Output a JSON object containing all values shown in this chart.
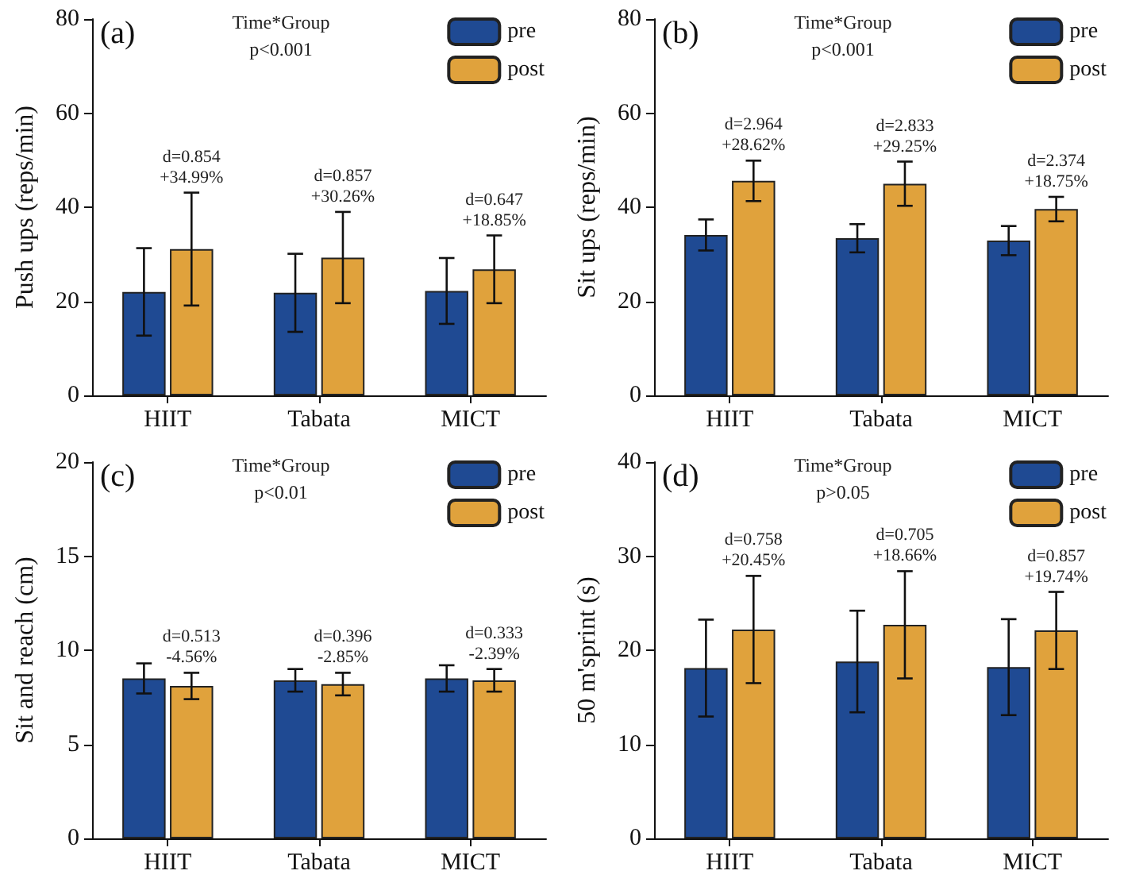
{
  "chart_data": [
    {
      "type": "bar",
      "title": "(a)",
      "ylabel": "Push ups (reps/min)",
      "categories": [
        "HIIT",
        "Tabata",
        "MICT"
      ],
      "ylim": [
        0,
        80
      ],
      "yticks": [
        0,
        20,
        40,
        60,
        80
      ],
      "legend": "top right",
      "annotations": [
        "Time*Group",
        "p<0.001",
        "d=0.854\n+34.99%",
        "d=0.857\n+30.26%",
        "d=0.647\n+18.85%"
      ],
      "series": [
        {
          "name": "pre",
          "color": "#1f4a93",
          "values": [
            22,
            21.8,
            22.2
          ],
          "errors": [
            9.3,
            8.3,
            7
          ]
        },
        {
          "name": "post",
          "color": "#e0a23c",
          "values": [
            31.1,
            29.3,
            26.8
          ],
          "errors": [
            12,
            9.7,
            7.2
          ]
        }
      ]
    },
    {
      "type": "bar",
      "title": "(b)",
      "ylabel": "Sit ups (reps/min)",
      "categories": [
        "HIIT",
        "Tabata",
        "MICT"
      ],
      "ylim": [
        0,
        80
      ],
      "yticks": [
        0,
        20,
        40,
        60,
        80
      ],
      "legend": "top right",
      "annotations": [
        "Time*Group",
        "p<0.001",
        "d=2.964\n+28.62%",
        "d=2.833\n+29.25%",
        "d=2.374\n+18.75%"
      ],
      "series": [
        {
          "name": "pre",
          "color": "#1f4a93",
          "values": [
            34.1,
            33.4,
            32.9
          ],
          "errors": [
            3.3,
            3,
            3.1
          ]
        },
        {
          "name": "post",
          "color": "#e0a23c",
          "values": [
            45.6,
            45,
            39.6
          ],
          "errors": [
            4.3,
            4.7,
            2.6
          ]
        }
      ]
    },
    {
      "type": "bar",
      "title": "(c)",
      "ylabel": "Sit and reach (cm)",
      "categories": [
        "HIIT",
        "Tabata",
        "MICT"
      ],
      "ylim": [
        0,
        20
      ],
      "yticks": [
        0,
        5,
        10,
        15,
        20
      ],
      "legend": "top right",
      "annotations": [
        "Time*Group",
        "p<0.01",
        "d=0.513\n-4.56%",
        "d=0.396\n-2.85%",
        "d=0.333\n-2.39%"
      ],
      "series": [
        {
          "name": "pre",
          "color": "#1f4a93",
          "values": [
            8.5,
            8.4,
            8.5
          ],
          "errors": [
            0.8,
            0.6,
            0.7
          ]
        },
        {
          "name": "post",
          "color": "#e0a23c",
          "values": [
            8.1,
            8.2,
            8.4
          ],
          "errors": [
            0.7,
            0.6,
            0.6
          ]
        }
      ]
    },
    {
      "type": "bar",
      "title": "(d)",
      "ylabel": "50 m'sprint (s)",
      "categories": [
        "HIIT",
        "Tabata",
        "MICT"
      ],
      "ylim": [
        0,
        40
      ],
      "yticks": [
        0,
        10,
        20,
        30,
        40
      ],
      "legend": "top right",
      "annotations": [
        "Time*Group",
        "p>0.05",
        "d=0.758\n+20.45%",
        "d=0.705\n+18.66%",
        "d=0.857\n+19.74%"
      ],
      "series": [
        {
          "name": "pre",
          "color": "#1f4a93",
          "values": [
            18.1,
            18.8,
            18.2
          ],
          "errors": [
            5.15,
            5.4,
            5.1
          ]
        },
        {
          "name": "post",
          "color": "#e0a23c",
          "values": [
            22.2,
            22.7,
            22.1
          ],
          "errors": [
            5.7,
            5.7,
            4.1
          ]
        }
      ]
    }
  ]
}
